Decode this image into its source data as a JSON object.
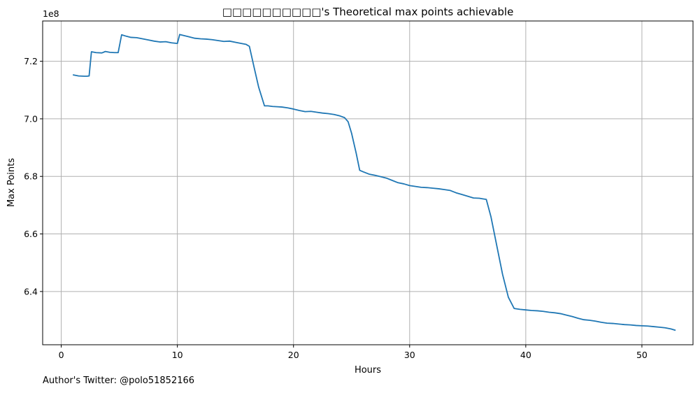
{
  "footer": {
    "text": "Author's Twitter: @polo51852166"
  },
  "chart_data": {
    "type": "line",
    "title": "□□□□□□□□□□'s Theoretical max points achievable",
    "xlabel": "Hours",
    "ylabel": "Max Points",
    "y_offset_label": "1e8",
    "xlim": [
      -1.6,
      54.4
    ],
    "ylim": [
      6.215,
      7.34
    ],
    "y_unit_scale": 100000000,
    "xticks": [
      0,
      10,
      20,
      30,
      40,
      50
    ],
    "yticks": [
      6.4,
      6.6,
      6.8,
      7.0,
      7.2
    ],
    "xtick_labels": [
      "0",
      "10",
      "20",
      "30",
      "40",
      "50"
    ],
    "ytick_labels": [
      "6.4",
      "6.6",
      "6.8",
      "7.0",
      "7.2"
    ],
    "grid": true,
    "line_color": "#1f77b4",
    "grid_color": "#b0b0b0",
    "series": [
      {
        "x": [
          1.0,
          1.5,
          2.0,
          2.2,
          2.4,
          2.6,
          3.0,
          3.5,
          3.8,
          4.2,
          4.6,
          4.9,
          5.2,
          5.6,
          6.0,
          6.5,
          7.0,
          7.5,
          8.0,
          8.5,
          9.0,
          9.5,
          10.0,
          10.2,
          10.6,
          11.0,
          11.5,
          12.0,
          12.5,
          13.0,
          13.5,
          14.0,
          14.5,
          15.0,
          15.5,
          15.9,
          16.2,
          16.6,
          17.0,
          17.5,
          17.8,
          18.2,
          18.6,
          19.0,
          19.5,
          20.0,
          20.5,
          21.0,
          21.5,
          22.0,
          22.5,
          23.0,
          23.5,
          24.0,
          24.4,
          24.7,
          25.0,
          25.4,
          25.7,
          26.0,
          26.5,
          27.0,
          27.5,
          28.0,
          28.5,
          29.0,
          29.5,
          30.0,
          30.5,
          31.0,
          31.5,
          32.0,
          32.5,
          33.0,
          33.5,
          34.0,
          34.5,
          35.0,
          35.5,
          36.0,
          36.3,
          36.6,
          37.0,
          37.5,
          38.0,
          38.5,
          39.0,
          39.5,
          40.0,
          40.5,
          41.0,
          41.5,
          42.0,
          42.5,
          43.0,
          43.5,
          44.0,
          44.5,
          45.0,
          45.5,
          46.0,
          46.5,
          47.0,
          47.5,
          48.0,
          48.5,
          49.0,
          49.5,
          50.0,
          50.5,
          51.0,
          51.5,
          52.0,
          52.5,
          52.9
        ],
        "y": [
          7.153,
          7.149,
          7.148,
          7.148,
          7.149,
          7.233,
          7.23,
          7.229,
          7.234,
          7.231,
          7.23,
          7.23,
          7.292,
          7.287,
          7.283,
          7.282,
          7.278,
          7.274,
          7.27,
          7.267,
          7.268,
          7.264,
          7.262,
          7.293,
          7.289,
          7.285,
          7.28,
          7.278,
          7.277,
          7.275,
          7.272,
          7.269,
          7.27,
          7.266,
          7.262,
          7.259,
          7.252,
          7.18,
          7.11,
          7.045,
          7.045,
          7.043,
          7.042,
          7.041,
          7.038,
          7.034,
          7.029,
          7.025,
          7.026,
          7.023,
          7.02,
          7.018,
          7.015,
          7.01,
          7.004,
          6.99,
          6.95,
          6.88,
          6.821,
          6.816,
          6.808,
          6.804,
          6.799,
          6.794,
          6.786,
          6.778,
          6.774,
          6.768,
          6.765,
          6.762,
          6.761,
          6.759,
          6.757,
          6.754,
          6.751,
          6.743,
          6.737,
          6.731,
          6.725,
          6.724,
          6.722,
          6.72,
          6.66,
          6.56,
          6.46,
          6.38,
          6.341,
          6.338,
          6.336,
          6.334,
          6.333,
          6.331,
          6.328,
          6.326,
          6.323,
          6.318,
          6.313,
          6.307,
          6.302,
          6.3,
          6.297,
          6.293,
          6.29,
          6.289,
          6.287,
          6.285,
          6.284,
          6.282,
          6.281,
          6.28,
          6.278,
          6.276,
          6.274,
          6.27,
          6.265
        ]
      }
    ]
  }
}
